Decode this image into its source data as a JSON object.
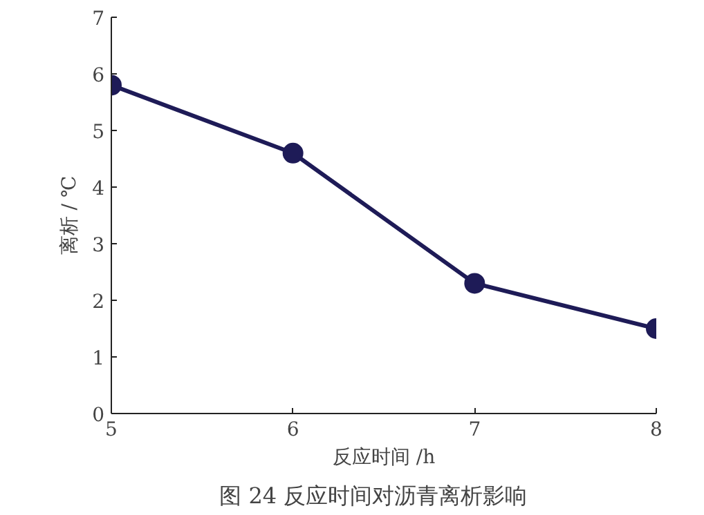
{
  "chart_data": {
    "type": "line",
    "title": "图 24    反应时间对沥青离析影响",
    "xlabel": "反应时间 /h",
    "ylabel": "离析 / ℃",
    "x": [
      5,
      6,
      7,
      8
    ],
    "series": [
      {
        "color": "#1e1b57",
        "values": [
          5.8,
          4.6,
          2.3,
          1.5
        ]
      }
    ],
    "xlim": [
      5,
      8
    ],
    "xticks": [
      5,
      6,
      7,
      8
    ],
    "ylim": [
      0,
      7
    ],
    "yticks": [
      0,
      1,
      2,
      3,
      4,
      5,
      6,
      7
    ],
    "grid": false,
    "marker": "circle",
    "line_style": "solid"
  }
}
